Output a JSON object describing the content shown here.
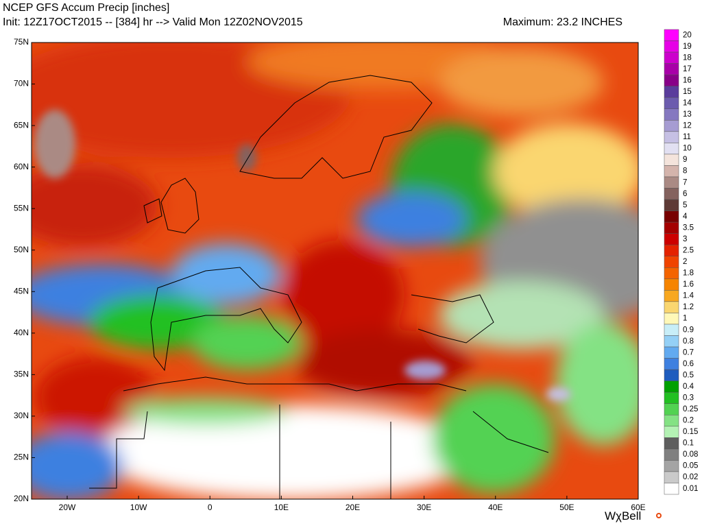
{
  "header": {
    "title": "NCEP GFS Accum Precip [inches]",
    "subtitle": "Init: 12Z17OCT2015 -- [384] hr --> Valid Mon 12Z02NOV2015",
    "maximum": "Maximum: 23.2 INCHES"
  },
  "map": {
    "lat_labels": [
      "75N",
      "70N",
      "65N",
      "60N",
      "55N",
      "50N",
      "45N",
      "40N",
      "35N",
      "30N",
      "25N",
      "20N"
    ],
    "lon_labels": [
      "20W",
      "10W",
      "0",
      "10E",
      "20E",
      "30E",
      "40E",
      "50E",
      "60E"
    ]
  },
  "colorbar": [
    {
      "label": "20",
      "color": "#ff00ff"
    },
    {
      "label": "19",
      "color": "#e600e6"
    },
    {
      "label": "18",
      "color": "#cc00cc"
    },
    {
      "label": "17",
      "color": "#a800a8"
    },
    {
      "label": "16",
      "color": "#880088"
    },
    {
      "label": "15",
      "color": "#5a3c9c"
    },
    {
      "label": "14",
      "color": "#6c5cae"
    },
    {
      "label": "13",
      "color": "#8578c0"
    },
    {
      "label": "12",
      "color": "#a69cd2"
    },
    {
      "label": "11",
      "color": "#c6c0e4"
    },
    {
      "label": "10",
      "color": "#e2e0f2"
    },
    {
      "label": "9",
      "color": "#f4e4dc"
    },
    {
      "label": "8",
      "color": "#d4b4ac"
    },
    {
      "label": "7",
      "color": "#aa8a84"
    },
    {
      "label": "6",
      "color": "#84625e"
    },
    {
      "label": "5",
      "color": "#5e3a36"
    },
    {
      "label": "4",
      "color": "#780000"
    },
    {
      "label": "3.5",
      "color": "#a40000"
    },
    {
      "label": "3",
      "color": "#cc0000"
    },
    {
      "label": "2.5",
      "color": "#e42200"
    },
    {
      "label": "2",
      "color": "#f04400"
    },
    {
      "label": "1.8",
      "color": "#f46400"
    },
    {
      "label": "1.6",
      "color": "#f68400"
    },
    {
      "label": "1.4",
      "color": "#f8a820"
    },
    {
      "label": "1.2",
      "color": "#fad670"
    },
    {
      "label": "1",
      "color": "#fff8b8"
    },
    {
      "label": "0.9",
      "color": "#c8eef8"
    },
    {
      "label": "0.8",
      "color": "#94d0f6"
    },
    {
      "label": "0.7",
      "color": "#62aaf0"
    },
    {
      "label": "0.6",
      "color": "#3e80e0"
    },
    {
      "label": "0.5",
      "color": "#1e5cbe"
    },
    {
      "label": "0.4",
      "color": "#00a000"
    },
    {
      "label": "0.3",
      "color": "#22c022"
    },
    {
      "label": "0.25",
      "color": "#52d252"
    },
    {
      "label": "0.2",
      "color": "#84e284"
    },
    {
      "label": "0.15",
      "color": "#b4f2b4"
    },
    {
      "label": "0.1",
      "color": "#5e5e5e"
    },
    {
      "label": "0.08",
      "color": "#808080"
    },
    {
      "label": "0.05",
      "color": "#a4a4a4"
    },
    {
      "label": "0.02",
      "color": "#cacaca"
    },
    {
      "label": "0.01",
      "color": "#ffffff"
    }
  ],
  "logo": "WχBell"
}
